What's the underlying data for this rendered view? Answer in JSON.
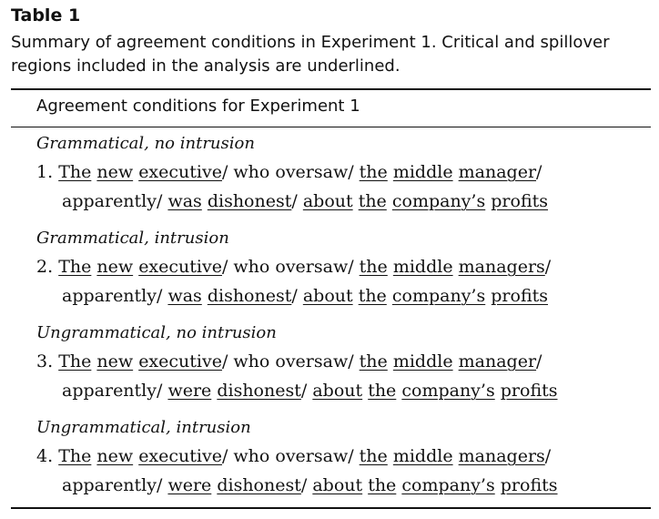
{
  "table": {
    "label": "Table 1",
    "caption": "Summary of agreement conditions in Experiment 1. Critical and spillover regions included in the analysis are underlined.",
    "header": "Agreement conditions for Experiment 1"
  },
  "conditions": [
    {
      "label": "Grammatical, no intrusion",
      "number": "1.",
      "line1": [
        {
          "t": "The",
          "u": true
        },
        {
          "t": " "
        },
        {
          "t": "new",
          "u": true
        },
        {
          "t": " "
        },
        {
          "t": "executive",
          "u": true
        },
        {
          "t": "/ who oversaw/ "
        },
        {
          "t": "the",
          "u": true
        },
        {
          "t": " "
        },
        {
          "t": "middle",
          "u": true
        },
        {
          "t": " "
        },
        {
          "t": "manager",
          "u": true
        },
        {
          "t": "/"
        }
      ],
      "line2": [
        {
          "t": "apparently/ "
        },
        {
          "t": "was",
          "u": true
        },
        {
          "t": " "
        },
        {
          "t": "dishonest",
          "u": true
        },
        {
          "t": "/ "
        },
        {
          "t": "about",
          "u": true
        },
        {
          "t": " "
        },
        {
          "t": "the",
          "u": true
        },
        {
          "t": " "
        },
        {
          "t": "company’s",
          "u": true
        },
        {
          "t": " "
        },
        {
          "t": "profits",
          "u": true
        }
      ]
    },
    {
      "label": "Grammatical, intrusion",
      "number": "2.",
      "line1": [
        {
          "t": "The",
          "u": true
        },
        {
          "t": " "
        },
        {
          "t": "new",
          "u": true
        },
        {
          "t": " "
        },
        {
          "t": "executive",
          "u": true
        },
        {
          "t": "/ who oversaw/ "
        },
        {
          "t": "the",
          "u": true
        },
        {
          "t": " "
        },
        {
          "t": "middle",
          "u": true
        },
        {
          "t": " "
        },
        {
          "t": "managers",
          "u": true
        },
        {
          "t": "/"
        }
      ],
      "line2": [
        {
          "t": "apparently/ "
        },
        {
          "t": "was",
          "u": true
        },
        {
          "t": " "
        },
        {
          "t": "dishonest",
          "u": true
        },
        {
          "t": "/ "
        },
        {
          "t": "about",
          "u": true
        },
        {
          "t": " "
        },
        {
          "t": "the",
          "u": true
        },
        {
          "t": " "
        },
        {
          "t": "company’s",
          "u": true
        },
        {
          "t": " "
        },
        {
          "t": "profits",
          "u": true
        }
      ]
    },
    {
      "label": "Ungrammatical, no intrusion",
      "number": "3.",
      "line1": [
        {
          "t": "The",
          "u": true
        },
        {
          "t": " "
        },
        {
          "t": "new",
          "u": true
        },
        {
          "t": " "
        },
        {
          "t": "executive",
          "u": true
        },
        {
          "t": "/ who oversaw/ "
        },
        {
          "t": "the",
          "u": true
        },
        {
          "t": " "
        },
        {
          "t": "middle",
          "u": true
        },
        {
          "t": " "
        },
        {
          "t": "manager",
          "u": true
        },
        {
          "t": "/"
        }
      ],
      "line2": [
        {
          "t": "apparently/ "
        },
        {
          "t": "were",
          "u": true
        },
        {
          "t": " "
        },
        {
          "t": "dishonest",
          "u": true
        },
        {
          "t": "/ "
        },
        {
          "t": "about",
          "u": true
        },
        {
          "t": " "
        },
        {
          "t": "the",
          "u": true
        },
        {
          "t": " "
        },
        {
          "t": "company’s",
          "u": true
        },
        {
          "t": " "
        },
        {
          "t": "profits",
          "u": true
        }
      ]
    },
    {
      "label": "Ungrammatical, intrusion",
      "number": "4.",
      "line1": [
        {
          "t": "The",
          "u": true
        },
        {
          "t": " "
        },
        {
          "t": "new",
          "u": true
        },
        {
          "t": " "
        },
        {
          "t": "executive",
          "u": true
        },
        {
          "t": "/ who oversaw/ "
        },
        {
          "t": "the",
          "u": true
        },
        {
          "t": " "
        },
        {
          "t": "middle",
          "u": true
        },
        {
          "t": " "
        },
        {
          "t": "managers",
          "u": true
        },
        {
          "t": "/"
        }
      ],
      "line2": [
        {
          "t": "apparently/ "
        },
        {
          "t": "were",
          "u": true
        },
        {
          "t": " "
        },
        {
          "t": "dishonest",
          "u": true
        },
        {
          "t": "/ "
        },
        {
          "t": "about",
          "u": true
        },
        {
          "t": " "
        },
        {
          "t": "the",
          "u": true
        },
        {
          "t": " "
        },
        {
          "t": "company’s",
          "u": true
        },
        {
          "t": " "
        },
        {
          "t": "profits",
          "u": true
        }
      ]
    }
  ]
}
